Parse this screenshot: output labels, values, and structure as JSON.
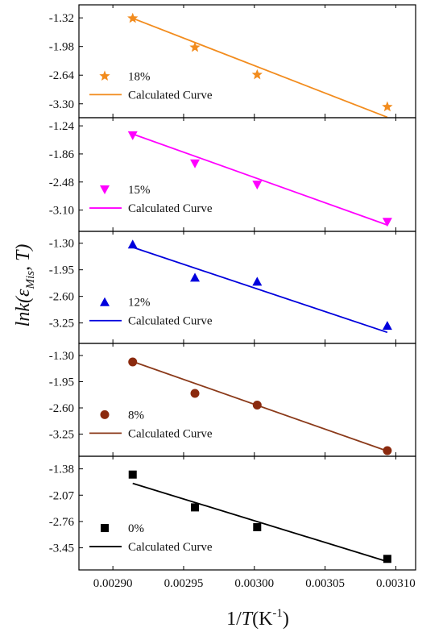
{
  "chart_data": [
    {
      "type": "scatter",
      "panel": "18%",
      "y_ticks": [
        "-1.32",
        "-1.98",
        "-2.64",
        "-3.30"
      ],
      "ylim": [
        -3.62,
        -1.02
      ],
      "marker": "star",
      "color": "#f28c1e",
      "series": [
        {
          "name": "18%",
          "x": [
            0.002914,
            0.002958,
            0.003002,
            0.003094
          ],
          "y": [
            -1.33,
            -2.0,
            -2.63,
            -3.37
          ]
        },
        {
          "name": "Calculated Curve",
          "line": [
            [
              0.002914,
              -1.33
            ],
            [
              0.003094,
              -3.61
            ]
          ]
        }
      ]
    },
    {
      "type": "scatter",
      "panel": "15%",
      "y_ticks": [
        "-1.24",
        "-1.86",
        "-2.48",
        "-3.10"
      ],
      "ylim": [
        -3.57,
        -1.06
      ],
      "marker": "triangle-down",
      "color": "#ff00ff",
      "series": [
        {
          "name": "15%",
          "x": [
            0.002914,
            0.002958,
            0.003002,
            0.003094
          ],
          "y": [
            -1.45,
            -2.07,
            -2.54,
            -3.36
          ]
        },
        {
          "name": "Calculated Curve",
          "line": [
            [
              0.002914,
              -1.42
            ],
            [
              0.003094,
              -3.43
            ]
          ]
        }
      ]
    },
    {
      "type": "scatter",
      "panel": "12%",
      "y_ticks": [
        "-1.30",
        "-1.95",
        "-2.60",
        "-3.25"
      ],
      "ylim": [
        -3.75,
        -1.01
      ],
      "marker": "triangle-up",
      "color": "#0000dd",
      "series": [
        {
          "name": "12%",
          "x": [
            0.002914,
            0.002958,
            0.003002,
            0.003094
          ],
          "y": [
            -1.33,
            -2.14,
            -2.24,
            -3.32
          ]
        },
        {
          "name": "Calculated Curve",
          "line": [
            [
              0.002914,
              -1.4
            ],
            [
              0.003094,
              -3.48
            ]
          ]
        }
      ]
    },
    {
      "type": "scatter",
      "panel": "8%",
      "y_ticks": [
        "-1.30",
        "-1.95",
        "-2.60",
        "-3.25"
      ],
      "ylim": [
        -3.8,
        -1.0
      ],
      "marker": "circle",
      "color": "#8b2a0e",
      "line_color": "#8b3a1a",
      "series": [
        {
          "name": "8%",
          "x": [
            0.002914,
            0.002958,
            0.003002,
            0.003094
          ],
          "y": [
            -1.46,
            -2.24,
            -2.53,
            -3.66
          ]
        },
        {
          "name": "Calculated Curve",
          "line": [
            [
              0.002914,
              -1.45
            ],
            [
              0.003094,
              -3.67
            ]
          ]
        }
      ]
    },
    {
      "type": "scatter",
      "panel": "0%",
      "y_ticks": [
        "-1.38",
        "-2.07",
        "-2.76",
        "-3.45"
      ],
      "ylim": [
        -4.03,
        -1.05
      ],
      "marker": "square",
      "color": "#000000",
      "series": [
        {
          "name": "0%",
          "x": [
            0.002914,
            0.002958,
            0.003002,
            0.003094
          ],
          "y": [
            -1.53,
            -2.39,
            -2.91,
            -3.74
          ]
        },
        {
          "name": "Calculated Curve",
          "line": [
            [
              0.002914,
              -1.76
            ],
            [
              0.003094,
              -3.81
            ]
          ]
        }
      ]
    }
  ],
  "x_axis": {
    "range": [
      0.002876,
      0.003114
    ],
    "ticks": [
      0.0029,
      0.00295,
      0.003,
      0.00305,
      0.0031
    ],
    "tick_labels": [
      "0.00290",
      "0.00295",
      "0.00300",
      "0.00305",
      "0.00310"
    ],
    "label_prefix": "1/",
    "label_var": "T",
    "label_unit_open": "(K",
    "label_sup": "-1",
    "label_unit_close": ")"
  },
  "y_axis": {
    "label_ln": "lnk(",
    "label_eps": "ε",
    "label_sub": "Mis",
    "label_rest": ", T)"
  },
  "legend_line_label": "Calculated Curve"
}
